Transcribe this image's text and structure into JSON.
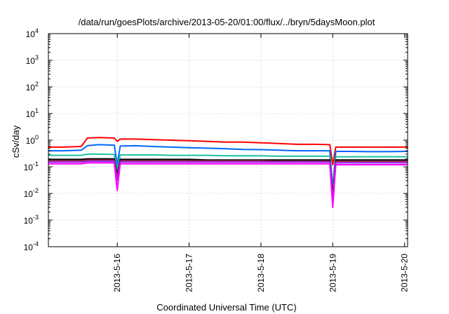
{
  "chart_data": {
    "type": "line",
    "title": "/data/run/goesPlots/archive/2013-05-20/01:00/flux/../bryn/5daysMoon.plot",
    "xlabel": "Coordinated Universal Time (UTC)",
    "ylabel": "cSv/day",
    "yscale": "log",
    "ylim": [
      0.0001,
      10000
    ],
    "y_ticks": [
      {
        "base": "10",
        "exp": "-4",
        "value": 0.0001
      },
      {
        "base": "10",
        "exp": "-3",
        "value": 0.001
      },
      {
        "base": "10",
        "exp": "-2",
        "value": 0.01
      },
      {
        "base": "10",
        "exp": "-1",
        "value": 0.1
      },
      {
        "base": "10",
        "exp": "0",
        "value": 1
      },
      {
        "base": "10",
        "exp": "1",
        "value": 10
      },
      {
        "base": "10",
        "exp": "2",
        "value": 100
      },
      {
        "base": "10",
        "exp": "3",
        "value": 1000
      },
      {
        "base": "10",
        "exp": "4",
        "value": 10000
      }
    ],
    "xlim": [
      "2013-05-15T01:00",
      "2013-05-20T01:00"
    ],
    "x_ticks": [
      {
        "label": "2013-5-16",
        "value": "2013-05-16T00:00"
      },
      {
        "label": "2013-5-17",
        "value": "2013-05-17T00:00"
      },
      {
        "label": "2013-5-18",
        "value": "2013-05-18T00:00"
      },
      {
        "label": "2013-5-19",
        "value": "2013-05-19T00:00"
      },
      {
        "label": "2013-5-20",
        "value": "2013-05-20T00:00"
      }
    ],
    "grid": true,
    "legend": "none",
    "x": [
      "2013-05-15T01:00",
      "2013-05-15T06:00",
      "2013-05-15T12:00",
      "2013-05-15T14:00",
      "2013-05-15T18:00",
      "2013-05-15T23:00",
      "2013-05-16T00:00",
      "2013-05-16T01:00",
      "2013-05-16T06:00",
      "2013-05-16T12:00",
      "2013-05-16T18:00",
      "2013-05-17T00:00",
      "2013-05-17T06:00",
      "2013-05-17T12:00",
      "2013-05-17T18:00",
      "2013-05-18T00:00",
      "2013-05-18T06:00",
      "2013-05-18T12:00",
      "2013-05-18T18:00",
      "2013-05-18T23:00",
      "2013-05-19T00:00",
      "2013-05-19T01:00",
      "2013-05-19T06:00",
      "2013-05-19T12:00",
      "2013-05-19T18:00",
      "2013-05-20T01:00"
    ],
    "series": [
      {
        "color": "#ff0000",
        "values": [
          0.55,
          0.55,
          0.58,
          1.2,
          1.25,
          1.2,
          0.9,
          1.1,
          1.1,
          1.05,
          1.0,
          0.95,
          0.9,
          0.85,
          0.85,
          0.8,
          0.75,
          0.7,
          0.7,
          0.68,
          0.12,
          0.55,
          0.55,
          0.55,
          0.55,
          0.55
        ]
      },
      {
        "color": "#0066ff",
        "values": [
          0.4,
          0.4,
          0.42,
          0.62,
          0.68,
          0.65,
          0.12,
          0.6,
          0.62,
          0.58,
          0.55,
          0.52,
          0.5,
          0.48,
          0.45,
          0.44,
          0.42,
          0.4,
          0.4,
          0.4,
          0.015,
          0.38,
          0.38,
          0.37,
          0.37,
          0.38
        ]
      },
      {
        "color": "#20c0a0",
        "values": [
          0.27,
          0.27,
          0.27,
          0.3,
          0.3,
          0.29,
          0.08,
          0.28,
          0.28,
          0.28,
          0.27,
          0.27,
          0.27,
          0.26,
          0.26,
          0.26,
          0.25,
          0.25,
          0.25,
          0.25,
          0.01,
          0.24,
          0.24,
          0.24,
          0.24,
          0.24
        ]
      },
      {
        "color": "#000000",
        "values": [
          0.19,
          0.19,
          0.19,
          0.2,
          0.2,
          0.2,
          0.05,
          0.19,
          0.19,
          0.19,
          0.19,
          0.19,
          0.18,
          0.18,
          0.18,
          0.18,
          0.18,
          0.18,
          0.18,
          0.18,
          0.008,
          0.18,
          0.18,
          0.18,
          0.18,
          0.18
        ]
      },
      {
        "color": "#8b1a4a",
        "values": [
          0.17,
          0.17,
          0.17,
          0.18,
          0.18,
          0.18,
          0.04,
          0.17,
          0.17,
          0.17,
          0.17,
          0.17,
          0.17,
          0.17,
          0.17,
          0.17,
          0.16,
          0.16,
          0.16,
          0.16,
          0.006,
          0.16,
          0.16,
          0.16,
          0.16,
          0.16
        ]
      },
      {
        "color": "#a020f0",
        "values": [
          0.15,
          0.15,
          0.15,
          0.16,
          0.16,
          0.16,
          0.03,
          0.15,
          0.15,
          0.15,
          0.15,
          0.15,
          0.15,
          0.15,
          0.15,
          0.15,
          0.15,
          0.15,
          0.15,
          0.15,
          0.005,
          0.14,
          0.14,
          0.14,
          0.14,
          0.14
        ]
      },
      {
        "color": "#ff00ff",
        "values": [
          0.13,
          0.13,
          0.13,
          0.14,
          0.14,
          0.14,
          0.013,
          0.13,
          0.13,
          0.13,
          0.13,
          0.13,
          0.13,
          0.13,
          0.13,
          0.13,
          0.13,
          0.13,
          0.13,
          0.13,
          0.003,
          0.12,
          0.12,
          0.12,
          0.12,
          0.12
        ]
      }
    ]
  }
}
